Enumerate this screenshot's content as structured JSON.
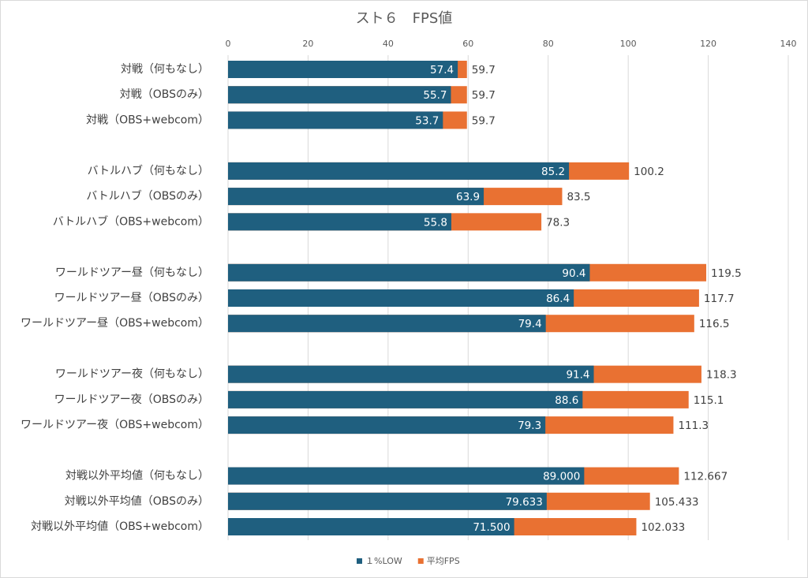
{
  "chart_data": {
    "type": "bar",
    "orientation": "horizontal",
    "overlap": true,
    "title": "スト６　FPS値",
    "categories": [
      "対戦（何もなし）",
      "対戦（OBSのみ）",
      "対戦（OBS+webcom）",
      null,
      "バトルハブ（何もなし）",
      "バトルハブ（OBSのみ）",
      "バトルハブ（OBS+webcom）",
      null,
      "ワールドツアー昼（何もなし）",
      "ワールドツアー昼（OBSのみ）",
      "ワールドツアー昼（OBS+webcom）",
      null,
      "ワールドツアー夜（何もなし）",
      "ワールドツアー夜（OBSのみ）",
      "ワールドツアー夜（OBS+webcom）",
      null,
      "対戦以外平均値（何もなし）",
      "対戦以外平均値（OBSのみ）",
      "対戦以外平均値（OBS+webcom）"
    ],
    "series": [
      {
        "name": "１%LOW",
        "color": "#1f5f7f",
        "values": [
          57.4,
          55.7,
          53.7,
          null,
          85.2,
          63.9,
          55.8,
          null,
          90.4,
          86.4,
          79.4,
          null,
          91.4,
          88.6,
          79.3,
          null,
          89,
          79.633,
          71.5
        ],
        "value_labels": [
          "57.4",
          "55.7",
          "53.7",
          null,
          "85.2",
          "63.9",
          "55.8",
          null,
          "90.4",
          "86.4",
          "79.4",
          null,
          "91.4",
          "88.6",
          "79.3",
          null,
          "89.000",
          "79.633",
          "71.500"
        ]
      },
      {
        "name": "平均FPS",
        "color": "#e97132",
        "values": [
          59.7,
          59.7,
          59.7,
          null,
          100.2,
          83.5,
          78.3,
          null,
          119.5,
          117.7,
          116.5,
          null,
          118.3,
          115.1,
          111.3,
          null,
          112.667,
          105.433,
          102.033
        ]
      }
    ],
    "xlim": [
      0,
      140
    ],
    "xticks": [
      0,
      20,
      40,
      60,
      80,
      100,
      120,
      140
    ],
    "grid": true,
    "legend": "bottom"
  }
}
